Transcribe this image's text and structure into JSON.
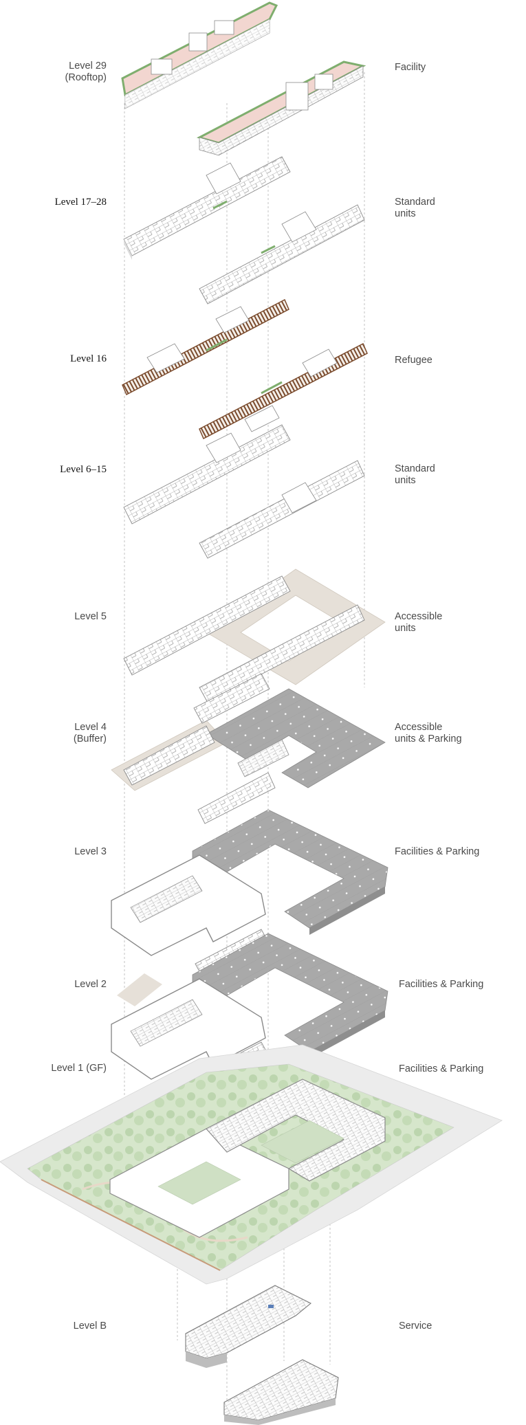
{
  "levels": [
    {
      "id": "level-29",
      "left_label": "Level 29\n(Rooftop)",
      "right_label": "Facility"
    },
    {
      "id": "level-17-28",
      "left_label": "Level 17–28",
      "right_label": "Standard\nunits"
    },
    {
      "id": "level-16",
      "left_label": "Level 16",
      "right_label": "Refugee"
    },
    {
      "id": "level-6-15",
      "left_label": "Level 6–15",
      "right_label": "Standard\nunits"
    },
    {
      "id": "level-5",
      "left_label": "Level 5",
      "right_label": "Accessible\nunits"
    },
    {
      "id": "level-4",
      "left_label": "Level 4\n(Buffer)",
      "right_label": "Accessible\nunits & Parking"
    },
    {
      "id": "level-3",
      "left_label": "Level 3",
      "right_label": "Facilities & Parking"
    },
    {
      "id": "level-2",
      "left_label": "Level 2",
      "right_label": "Facilities & Parking"
    },
    {
      "id": "level-1",
      "left_label": "Level 1 (GF)",
      "right_label": "Facilities & Parking"
    },
    {
      "id": "level-b",
      "left_label": "Level B",
      "right_label": "Service"
    }
  ],
  "colors": {
    "label_text": "#4a4a4a",
    "serif_label_text": "#111111",
    "roof_pink": "#f2d6d0",
    "roof_green_edge": "#7fae6e",
    "refuge_brown": "#7a4a2c",
    "parking_grey": "#a9a9a9",
    "plinth_beige": "#e6e0d8",
    "landscape_green": "#cfe0c4",
    "site_grey": "#ececec",
    "linework": "#8a8a8a",
    "guide_dash": "#b5b5b5"
  }
}
